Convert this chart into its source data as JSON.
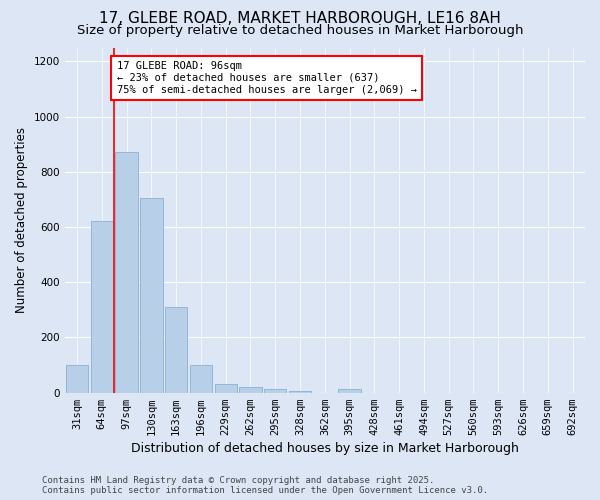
{
  "title": "17, GLEBE ROAD, MARKET HARBOROUGH, LE16 8AH",
  "subtitle": "Size of property relative to detached houses in Market Harborough",
  "xlabel": "Distribution of detached houses by size in Market Harborough",
  "ylabel": "Number of detached properties",
  "footer_line1": "Contains HM Land Registry data © Crown copyright and database right 2025.",
  "footer_line2": "Contains public sector information licensed under the Open Government Licence v3.0.",
  "categories": [
    "31sqm",
    "64sqm",
    "97sqm",
    "130sqm",
    "163sqm",
    "196sqm",
    "229sqm",
    "262sqm",
    "295sqm",
    "328sqm",
    "362sqm",
    "395sqm",
    "428sqm",
    "461sqm",
    "494sqm",
    "527sqm",
    "560sqm",
    "593sqm",
    "626sqm",
    "659sqm",
    "692sqm"
  ],
  "values": [
    100,
    620,
    870,
    705,
    310,
    100,
    30,
    20,
    15,
    5,
    0,
    15,
    0,
    0,
    0,
    0,
    0,
    0,
    0,
    0,
    0
  ],
  "bar_color": "#b8cfe8",
  "bar_edge_color": "#8aafd4",
  "vline_color": "red",
  "vline_x_index": 1.5,
  "annotation_text_line1": "17 GLEBE ROAD: 96sqm",
  "annotation_text_line2": "← 23% of detached houses are smaller (637)",
  "annotation_text_line3": "75% of semi-detached houses are larger (2,069) →",
  "annotation_box_color": "white",
  "annotation_box_edge_color": "red",
  "ylim": [
    0,
    1250
  ],
  "yticks": [
    0,
    200,
    400,
    600,
    800,
    1000,
    1200
  ],
  "background_color": "#dce6f5",
  "plot_bg_color": "#dce6f5",
  "title_fontsize": 11,
  "subtitle_fontsize": 9.5,
  "ylabel_fontsize": 8.5,
  "xlabel_fontsize": 9,
  "tick_fontsize": 7.5,
  "footer_fontsize": 6.5,
  "annotation_fontsize": 7.5
}
